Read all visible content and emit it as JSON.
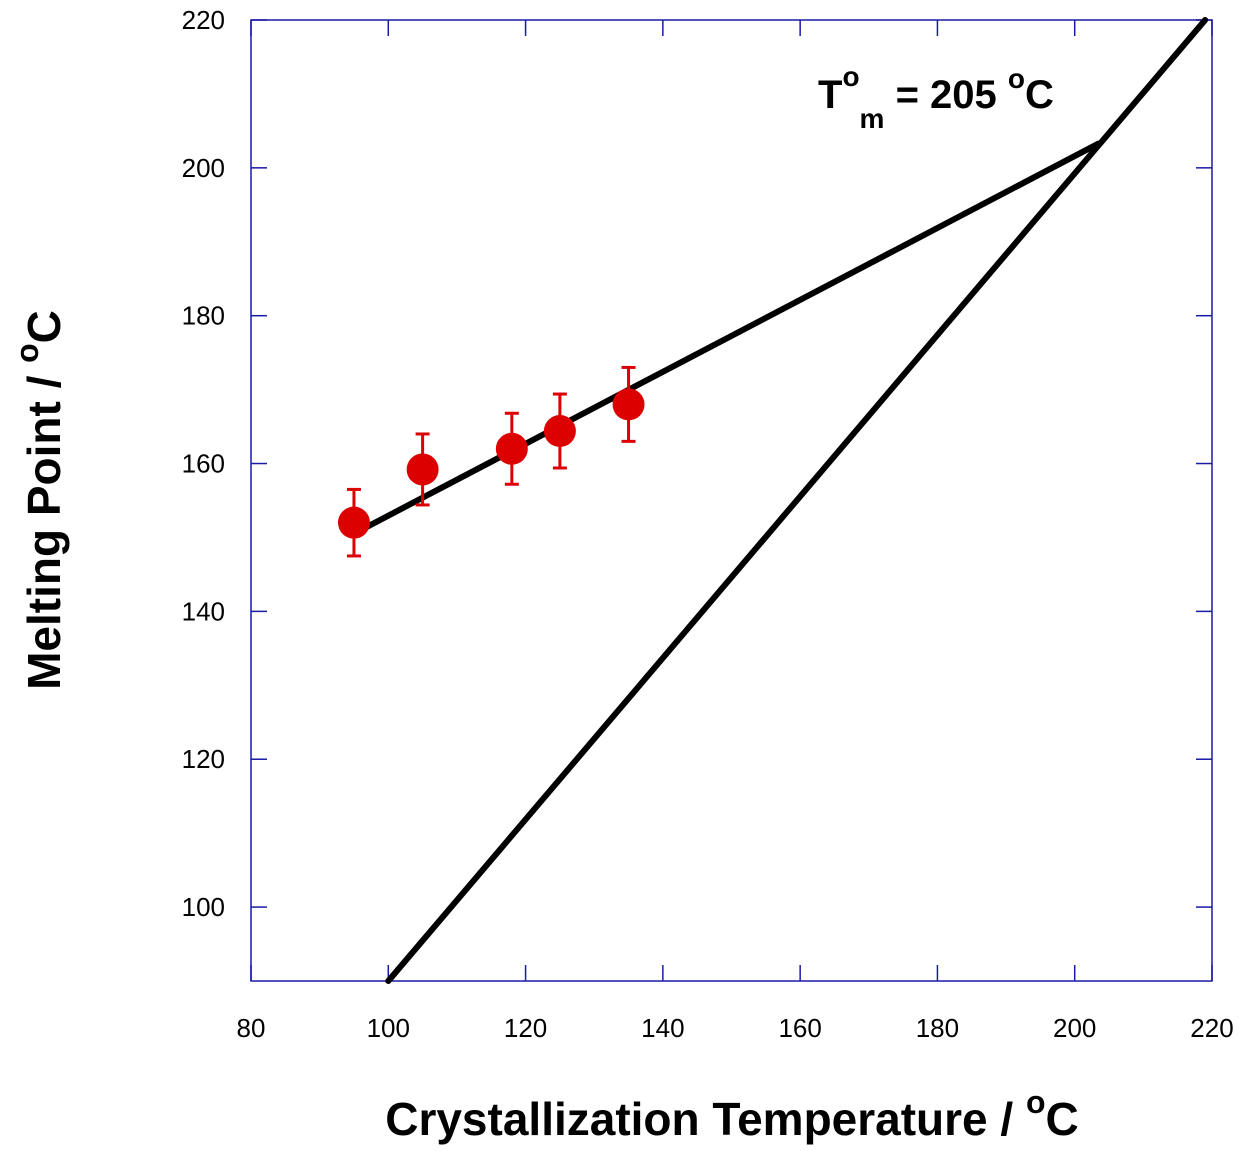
{
  "chart_data": {
    "type": "scatter",
    "xlabel": "Crystallization Temperature / °C",
    "ylabel": "Melting Point / °C",
    "xlim": [
      80,
      220
    ],
    "ylim": [
      90,
      220
    ],
    "x_ticks": [
      80,
      100,
      120,
      140,
      160,
      180,
      200,
      220
    ],
    "y_ticks": [
      100,
      120,
      140,
      160,
      180,
      200,
      220
    ],
    "grid": false,
    "annotation": {
      "T": "T",
      "sup": "o",
      "sub": "m",
      "eq": " = 205 ",
      "deg": "o",
      "unit": "C"
    },
    "xlabel_parts": {
      "text": "Crystallization Temperature / ",
      "deg": "o",
      "unit": "C"
    },
    "ylabel_parts": {
      "text": "Melting Point / ",
      "deg": "o",
      "unit": "C"
    },
    "series": [
      {
        "type": "scatter",
        "color": "#dd0000",
        "x": [
          95,
          105,
          118,
          125,
          135
        ],
        "y": [
          152,
          159.2,
          162,
          164.4,
          168
        ],
        "error": [
          4.5,
          4.8,
          4.8,
          5.0,
          5.0
        ]
      },
      {
        "type": "line",
        "color": "#000000",
        "x": [
          96,
          203.5
        ],
        "y": [
          151,
          203.3
        ]
      },
      {
        "type": "line",
        "color": "#000000",
        "x": [
          100,
          219
        ],
        "y": [
          90,
          220
        ]
      }
    ],
    "colors": {
      "axis": "#1a1aa6",
      "points": "#dd0000",
      "lines": "#000000"
    }
  }
}
